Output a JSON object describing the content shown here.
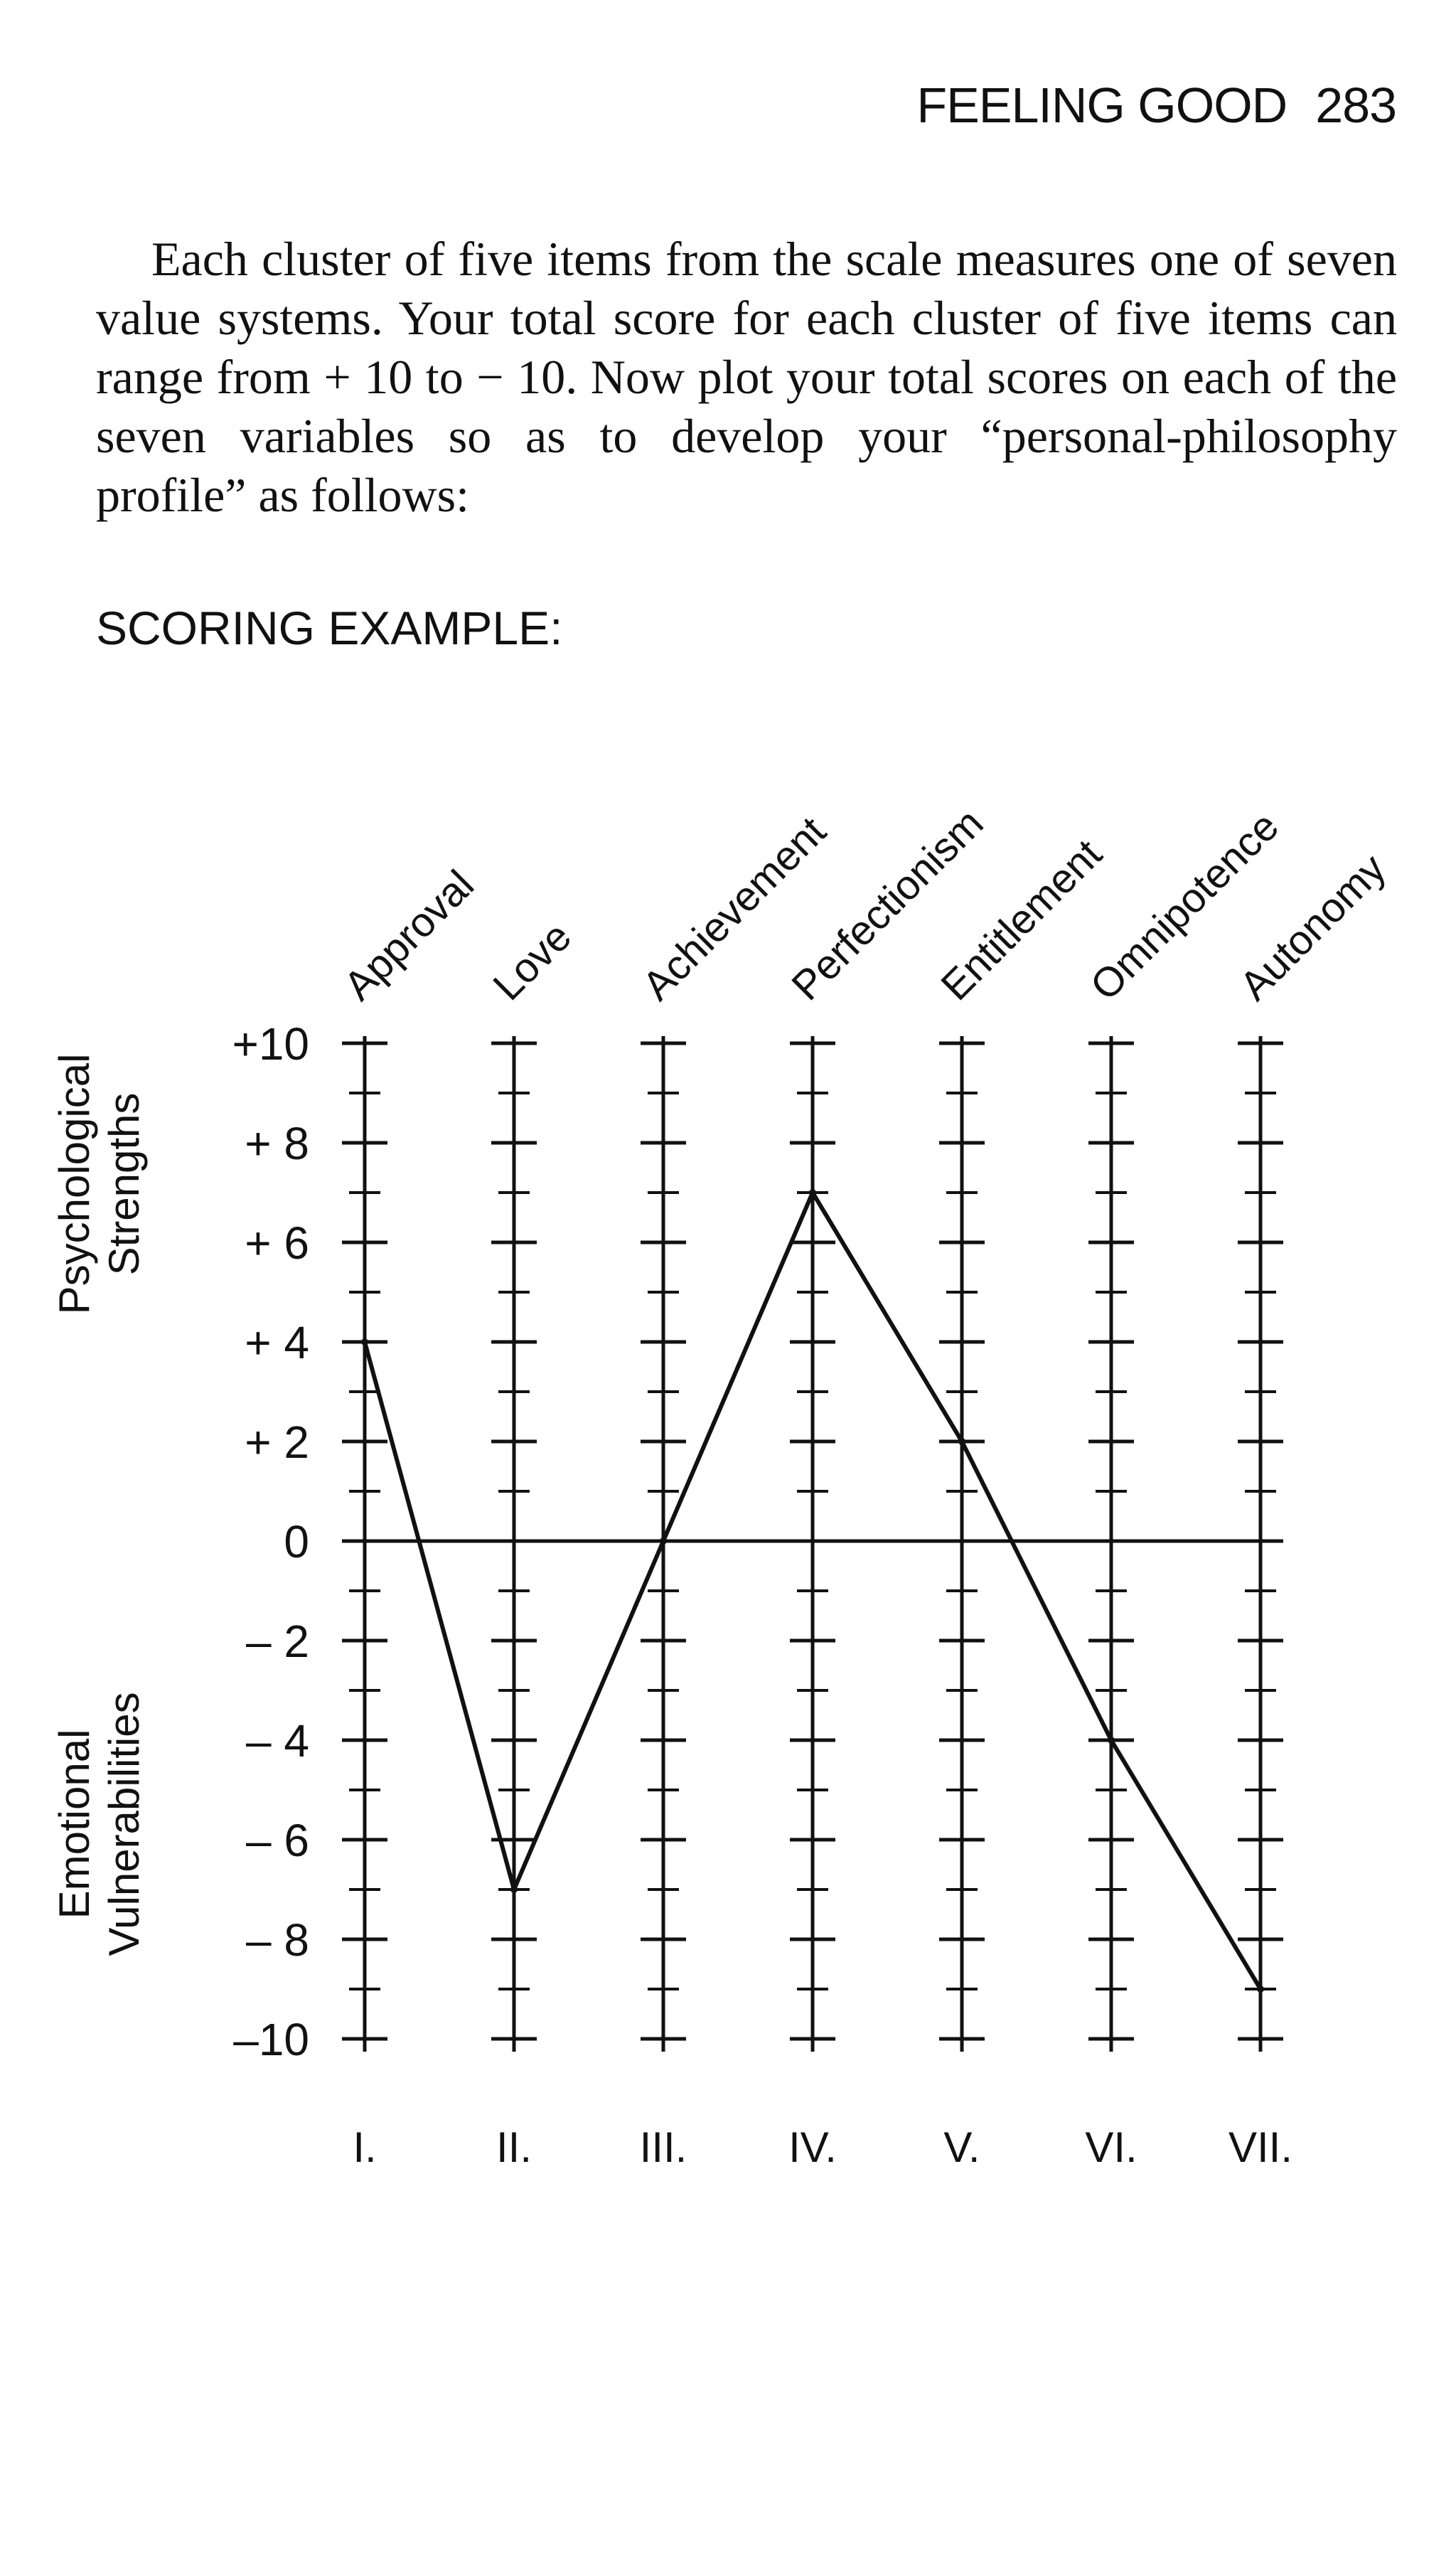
{
  "header": {
    "title": "FEELING GOOD",
    "page_number": "283"
  },
  "body": {
    "paragraph": "Each cluster of five items from the scale measures one of seven value systems. Your total score for each cluster of five items can range from + 10 to − 10. Now plot your total scores on each of the seven variables so as to develop your “personal-philosophy profile” as follows:"
  },
  "scoring_label": "SCORING EXAMPLE:",
  "chart_data": {
    "type": "line",
    "title": "SCORING EXAMPLE:",
    "categories": [
      "Approval",
      "Love",
      "Achievement",
      "Perfectionism",
      "Entitlement",
      "Omnipotence",
      "Autonomy"
    ],
    "roman_numerals": [
      "I.",
      "II.",
      "III.",
      "IV.",
      "V.",
      "VI.",
      "VII."
    ],
    "series": [
      {
        "name": "Scoring example",
        "values": [
          4,
          -7,
          0,
          7,
          2,
          -4,
          -9
        ]
      }
    ],
    "ylim": [
      -10,
      10
    ],
    "ytick_values": [
      10,
      8,
      6,
      4,
      2,
      0,
      -2,
      -4,
      -6,
      -8,
      -10
    ],
    "ytick_labels": [
      "+10",
      "+ 8",
      "+ 6",
      "+ 4",
      "+ 2",
      "0",
      "– 2",
      "– 4",
      "– 6",
      "– 8",
      "–10"
    ],
    "ylabel_positive": [
      "Psychological",
      "Strengths"
    ],
    "ylabel_negative": [
      "Emotional",
      "Vulnerabilities"
    ],
    "zero_line": true
  }
}
